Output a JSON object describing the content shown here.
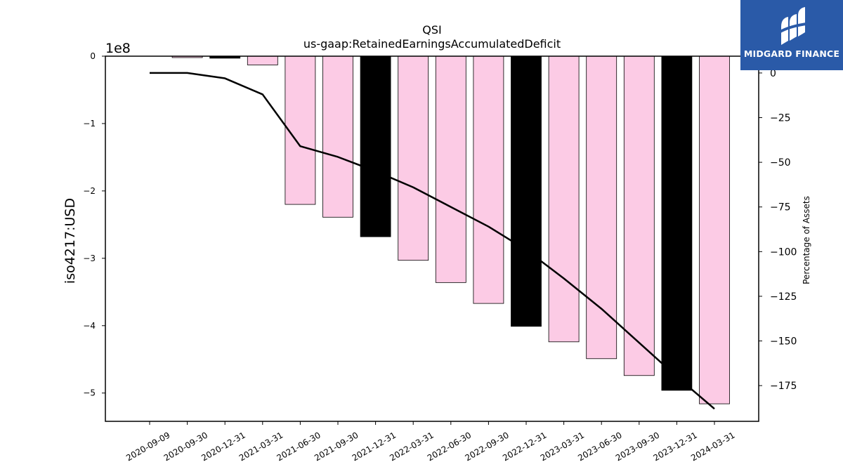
{
  "chart_data": {
    "type": "bar",
    "title": "QSI",
    "subtitle": "us-gaap:RetainedEarningsAccumulatedDeficit",
    "ylabel": "iso4217:USD",
    "y_offset_label": "1e8",
    "y2label": "Percentage of Assets",
    "ylim": [
      -5.42,
      0
    ],
    "y2lim": [
      -195,
      9.4
    ],
    "yticks": [
      0,
      -1,
      -2,
      -3,
      -4,
      -5
    ],
    "y2ticks": [
      0,
      -25,
      -50,
      -75,
      -100,
      -125,
      -150,
      -175
    ],
    "categories": [
      "2020-09-09",
      "2020-09-30",
      "2020-12-31",
      "2021-03-31",
      "2021-06-30",
      "2021-09-30",
      "2021-12-31",
      "2022-03-31",
      "2022-06-30",
      "2022-09-30",
      "2022-12-31",
      "2023-03-31",
      "2023-06-30",
      "2023-09-30",
      "2023-12-31",
      "2024-03-31"
    ],
    "series": [
      {
        "values": [
          0,
          -0.01,
          -0.03,
          -0.13,
          -2.2,
          -2.39,
          -2.68,
          -3.03,
          -3.36,
          -3.67,
          -4.01,
          -4.24,
          -4.49,
          -4.74,
          -4.96,
          -5.16
        ],
        "annual_flags": [
          false,
          false,
          true,
          false,
          false,
          false,
          true,
          false,
          false,
          false,
          true,
          false,
          false,
          false,
          true,
          false
        ],
        "colors": {
          "quarterly": "#fccbe5",
          "annual": "#000000"
        }
      },
      {
        "axis": "right",
        "type": "line",
        "values": [
          0,
          0,
          -3,
          -12,
          -41,
          -47,
          -55,
          -64,
          -75,
          -86,
          -99,
          -115,
          -132,
          -151,
          -170,
          -188
        ],
        "color": "#000000"
      }
    ]
  },
  "logo": {
    "text": "MIDGARD FINANCE"
  }
}
